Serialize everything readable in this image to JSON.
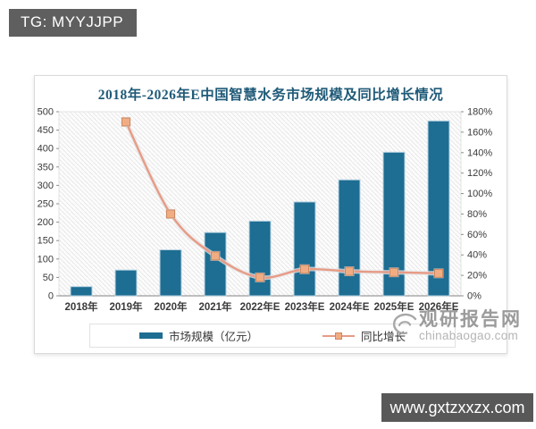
{
  "tg_badge": {
    "label": "TG: MYYJJPP"
  },
  "site_badge": {
    "label": "www.gxtzxxzx.com"
  },
  "watermark": {
    "logo": "swirl-eye-logo",
    "name": "观研报告网",
    "domain": "chinabaogao.com"
  },
  "chart_data": {
    "type": "bar",
    "subtype": "bar-line-combo",
    "title": "2018年-2026年E中国智慧水务市场规模及同比增长情况",
    "categories": [
      "2018年",
      "2019年",
      "2020年",
      "2021年",
      "2022年E",
      "2023年E",
      "2024年E",
      "2025年E",
      "2026年E"
    ],
    "series": [
      {
        "name": "市场规模（亿元）",
        "type": "bar",
        "axis": "left",
        "color": "#1e6d92",
        "bar_highlight": "#b7d3e2",
        "values": [
          25,
          70,
          125,
          172,
          203,
          255,
          315,
          390,
          475
        ]
      },
      {
        "name": "同比增长",
        "type": "line",
        "axis": "right",
        "color": "#e79b85",
        "marker_fill": "#f0ad83",
        "marker_stroke": "#cd8861",
        "unit": "%",
        "values": [
          null,
          170,
          80,
          39,
          18,
          26,
          24,
          23,
          22
        ]
      }
    ],
    "left_axis": {
      "min": 0,
      "max": 500,
      "step": 50
    },
    "right_axis": {
      "min": 0,
      "max": 180,
      "step": 20,
      "suffix": "%"
    },
    "legend_position": "bottom",
    "plot_background": "diagonal-hatch"
  }
}
